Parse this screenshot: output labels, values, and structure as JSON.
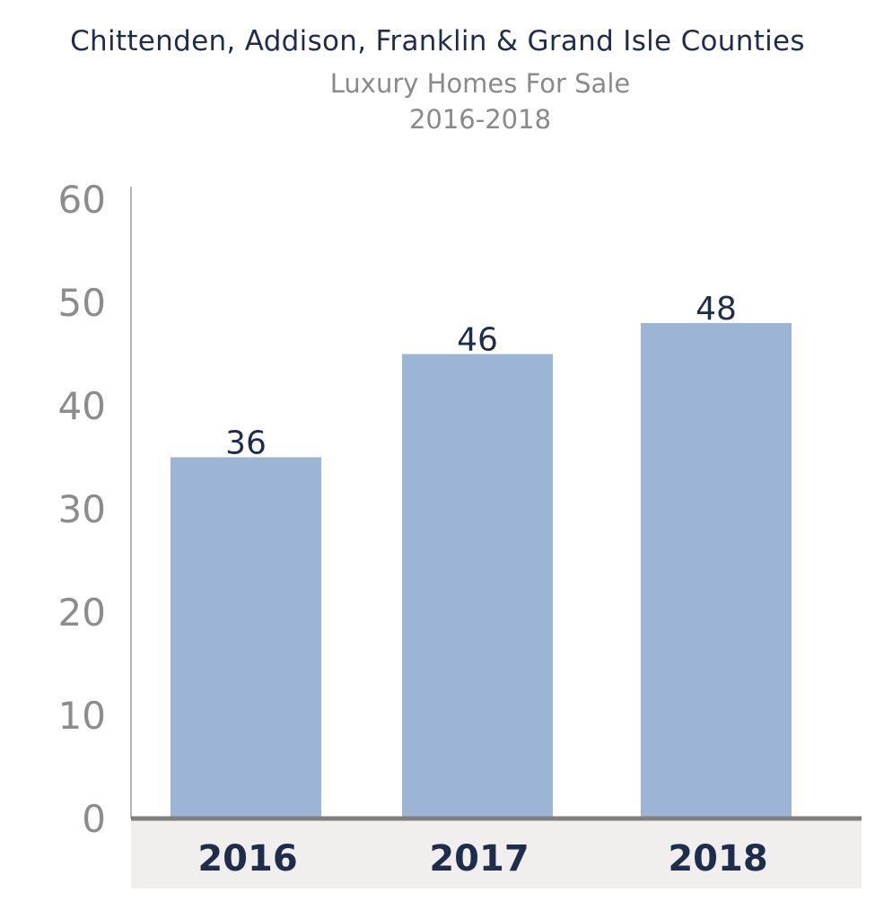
{
  "chart_data": {
    "type": "bar",
    "title": "Chittenden, Addison, Franklin & Grand Isle Counties",
    "subtitle": "Luxury Homes For Sale",
    "subtitle2": "2016-2018",
    "categories": [
      "2016",
      "2017",
      "2018"
    ],
    "values": [
      36,
      46,
      48
    ],
    "data_labels": [
      "36",
      "46",
      "48"
    ],
    "yticks": [
      "0",
      "10",
      "20",
      "30",
      "40",
      "50",
      "60"
    ],
    "ylim": [
      0,
      60
    ],
    "xlabel": "",
    "ylabel": "",
    "grid": false,
    "colors": {
      "bar": "#9db5d5",
      "axis": "#7f7f7f",
      "tick_label": "#8c8c8c",
      "data_label": "#1f2d4d",
      "category_label": "#1f2d4d",
      "category_band": "#f0efee"
    }
  }
}
